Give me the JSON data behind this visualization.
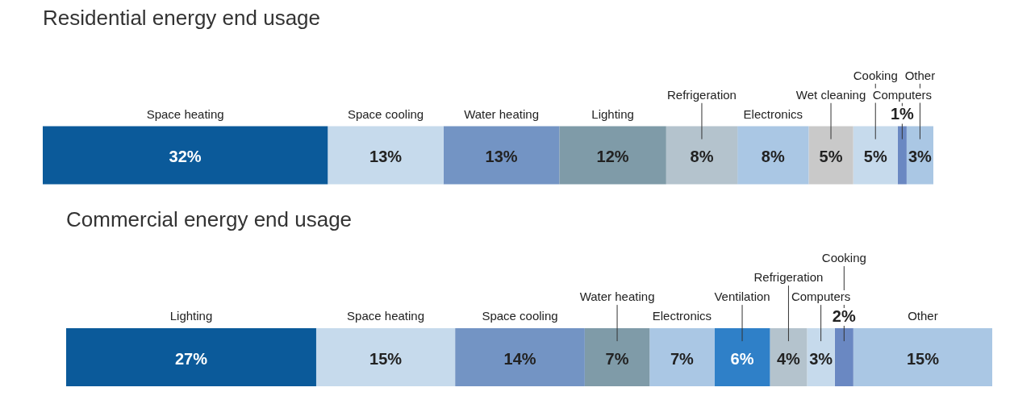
{
  "chart_data": [
    {
      "type": "bar",
      "title": "Residential energy end usage",
      "orientation": "horizontal",
      "stacked": true,
      "categories": [
        null
      ],
      "series": [
        {
          "name": "Space heating",
          "color": "#0b5a9a",
          "values": [
            32
          ],
          "value_labels": [
            "32%"
          ]
        },
        {
          "name": "Space cooling",
          "color": "#c6daec",
          "values": [
            13
          ],
          "value_labels": [
            "13%"
          ]
        },
        {
          "name": "Water heating",
          "color": "#7394c4",
          "values": [
            13
          ],
          "value_labels": [
            "13%"
          ]
        },
        {
          "name": "Lighting",
          "color": "#7f9ba8",
          "values": [
            12
          ],
          "value_labels": [
            "12%"
          ]
        },
        {
          "name": "Refrigeration",
          "color": "#b4c3cd",
          "values": [
            8
          ],
          "value_labels": [
            "8%"
          ]
        },
        {
          "name": "Electronics",
          "color": "#aac7e4",
          "values": [
            8
          ],
          "value_labels": [
            "8%"
          ]
        },
        {
          "name": "Wet cleaning",
          "color": "#c9c9c9",
          "values": [
            5
          ],
          "value_labels": [
            "5%"
          ]
        },
        {
          "name": "Cooking",
          "color": "#c6daec",
          "values": [
            5
          ],
          "value_labels": [
            "5%"
          ]
        },
        {
          "name": "Computers",
          "color": "#6a88c2",
          "values": [
            1
          ],
          "value_labels": [
            "1%"
          ]
        },
        {
          "name": "Other",
          "color": "#aac7e4",
          "values": [
            3
          ],
          "value_labels": [
            "3%"
          ]
        }
      ]
    },
    {
      "type": "bar",
      "title": "Commercial energy end usage",
      "orientation": "horizontal",
      "stacked": true,
      "categories": [
        null
      ],
      "series": [
        {
          "name": "Lighting",
          "color": "#0b5a9a",
          "values": [
            27
          ],
          "value_labels": [
            "27%"
          ]
        },
        {
          "name": "Space heating",
          "color": "#c6daec",
          "values": [
            15
          ],
          "value_labels": [
            "15%"
          ]
        },
        {
          "name": "Space cooling",
          "color": "#7394c4",
          "values": [
            14
          ],
          "value_labels": [
            "14%"
          ]
        },
        {
          "name": "Water heating",
          "color": "#7f9ba8",
          "values": [
            7
          ],
          "value_labels": [
            "7%"
          ]
        },
        {
          "name": "Electronics",
          "color": "#aac7e4",
          "values": [
            7
          ],
          "value_labels": [
            "7%"
          ]
        },
        {
          "name": "Ventilation",
          "color": "#2f80c8",
          "values": [
            6
          ],
          "value_labels": [
            "6%"
          ]
        },
        {
          "name": "Refrigeration",
          "color": "#b4c3cd",
          "values": [
            4
          ],
          "value_labels": [
            "4%"
          ]
        },
        {
          "name": "Computers",
          "color": "#c6daec",
          "values": [
            3
          ],
          "value_labels": [
            "3%"
          ]
        },
        {
          "name": "Cooking",
          "color": "#6a88c2",
          "values": [
            2
          ],
          "value_labels": [
            "2%"
          ]
        },
        {
          "name": "Other",
          "color": "#aac7e4",
          "values": [
            15
          ],
          "value_labels": [
            "15%"
          ]
        }
      ]
    }
  ]
}
